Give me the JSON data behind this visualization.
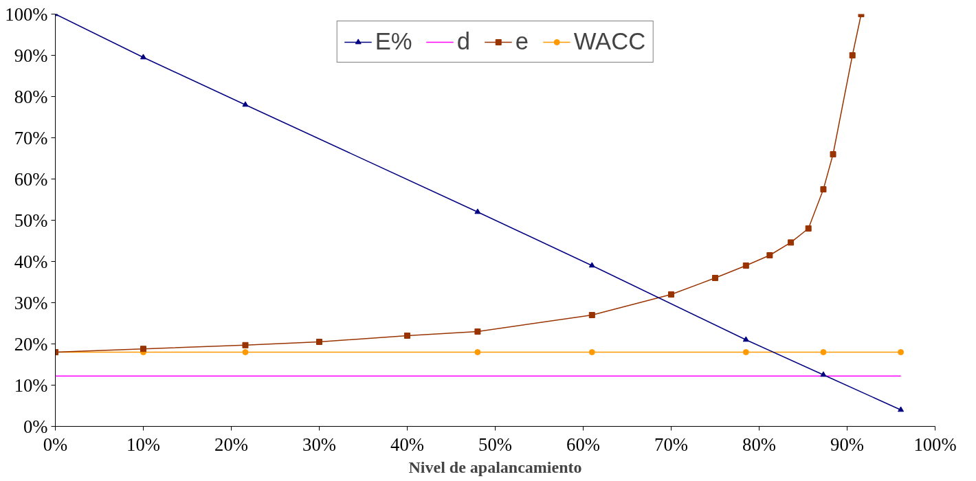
{
  "chart_data": {
    "type": "line",
    "xlabel": "Nivel de apalancamiento",
    "legend": "top",
    "grid": false,
    "line_style": "solid",
    "xlim": [
      0,
      100
    ],
    "ylim": [
      0,
      100
    ],
    "xticks": [
      {
        "value": 0,
        "label": "0%"
      },
      {
        "value": 10,
        "label": "10%"
      },
      {
        "value": 20,
        "label": "20%"
      },
      {
        "value": 30,
        "label": "30%"
      },
      {
        "value": 40,
        "label": "40%"
      },
      {
        "value": 50,
        "label": "50%"
      },
      {
        "value": 60,
        "label": "60%"
      },
      {
        "value": 70,
        "label": "70%"
      },
      {
        "value": 80,
        "label": "80%"
      },
      {
        "value": 90,
        "label": "90%"
      },
      {
        "value": 100,
        "label": "100%"
      }
    ],
    "yticks": [
      {
        "value": 0,
        "label": "0%"
      },
      {
        "value": 10,
        "label": "10%"
      },
      {
        "value": 20,
        "label": "20%"
      },
      {
        "value": 30,
        "label": "30%"
      },
      {
        "value": 40,
        "label": "40%"
      },
      {
        "value": 50,
        "label": "50%"
      },
      {
        "value": 60,
        "label": "60%"
      },
      {
        "value": 70,
        "label": "70%"
      },
      {
        "value": 80,
        "label": "80%"
      },
      {
        "value": 90,
        "label": "90%"
      },
      {
        "value": 100,
        "label": "100%"
      }
    ],
    "series": [
      {
        "name": "E%",
        "color": "#000080",
        "marker": "triangle",
        "x": [
          0,
          10,
          21.6,
          48,
          61,
          78.5,
          87.3,
          96.1
        ],
        "values": [
          100,
          89.5,
          78,
          52,
          39,
          21,
          12.5,
          4
        ]
      },
      {
        "name": "d",
        "color": "#ff00ff",
        "marker": "none",
        "x": [
          0,
          96.1
        ],
        "values": [
          12.2,
          12.2
        ]
      },
      {
        "name": "e",
        "color": "#993300",
        "marker": "square",
        "x": [
          0,
          10,
          21.6,
          30,
          40,
          48,
          61,
          70,
          75,
          78.5,
          81.2,
          83.6,
          85.6,
          87.3,
          88.4,
          90.6,
          91.6
        ],
        "values": [
          18,
          18.8,
          19.7,
          20.5,
          22,
          23,
          27,
          32,
          36,
          39,
          41.5,
          44.6,
          48,
          57.5,
          66,
          90,
          100
        ]
      },
      {
        "name": "WACC",
        "color": "#ff9900",
        "marker": "circle",
        "x": [
          0,
          10,
          21.6,
          48,
          61,
          78.5,
          87.3,
          96.1
        ],
        "values": [
          18,
          18,
          18,
          18,
          18,
          18,
          18,
          18
        ]
      }
    ]
  }
}
